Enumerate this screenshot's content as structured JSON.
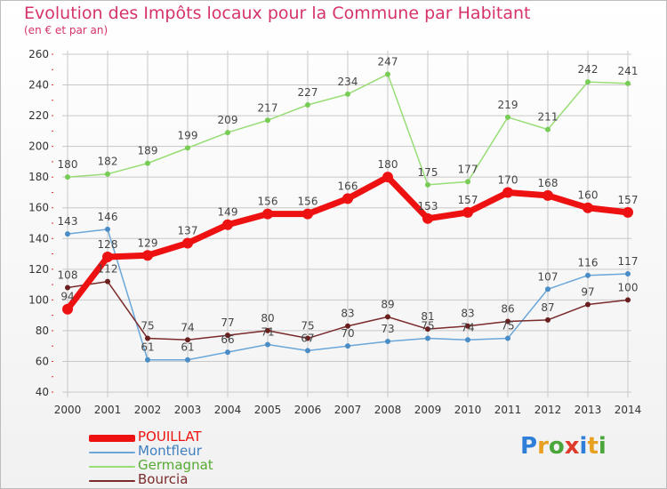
{
  "header": {
    "title": "Evolution des Impôts locaux pour la Commune par Habitant",
    "subtitle": "(en € et par an)"
  },
  "brand": {
    "letters": [
      "P",
      "r",
      "o",
      "x",
      "i",
      "t",
      "i"
    ]
  },
  "colors": {
    "title": "#d6336c",
    "grid": "#c8c8c8",
    "axis_text": "#333333",
    "label_text": "#444444"
  },
  "chart_data": {
    "type": "line",
    "title": "Evolution des Impôts locaux pour la Commune par Habitant",
    "subtitle": "(en € et par an)",
    "xlabel": "",
    "ylabel": "",
    "x": [
      "2000",
      "2001",
      "2002",
      "2003",
      "2004",
      "2005",
      "2006",
      "2007",
      "2008",
      "2009",
      "2010",
      "2011",
      "2012",
      "2013",
      "2014"
    ],
    "ylim": [
      40,
      260
    ],
    "yticks": [
      40,
      60,
      80,
      100,
      120,
      140,
      160,
      180,
      200,
      220,
      240,
      260
    ],
    "grid": true,
    "legend_position": "bottom-left",
    "series": [
      {
        "name": "POUILLAT",
        "color": "#ee1111",
        "width": 7,
        "marker": "#ee1111",
        "values": [
          94,
          128,
          129,
          137,
          149,
          156,
          156,
          166,
          180,
          153,
          157,
          170,
          168,
          160,
          157
        ]
      },
      {
        "name": "Montfleur",
        "color": "#6aa6d8",
        "width": 1.5,
        "marker": "#4a8cc6",
        "values": [
          143,
          146,
          61,
          61,
          66,
          71,
          67,
          70,
          73,
          75,
          74,
          75,
          107,
          116,
          117
        ]
      },
      {
        "name": "Germagnat",
        "color": "#99dd77",
        "width": 1.5,
        "marker": "#77cc55",
        "values": [
          180,
          182,
          189,
          199,
          209,
          217,
          227,
          234,
          247,
          175,
          177,
          219,
          211,
          242,
          241
        ]
      },
      {
        "name": "Bourcia",
        "color": "#7a2a2a",
        "width": 1.5,
        "marker": "#6a1f1f",
        "values": [
          108,
          112,
          75,
          74,
          77,
          80,
          75,
          83,
          89,
          81,
          83,
          86,
          87,
          97,
          100
        ]
      }
    ]
  }
}
